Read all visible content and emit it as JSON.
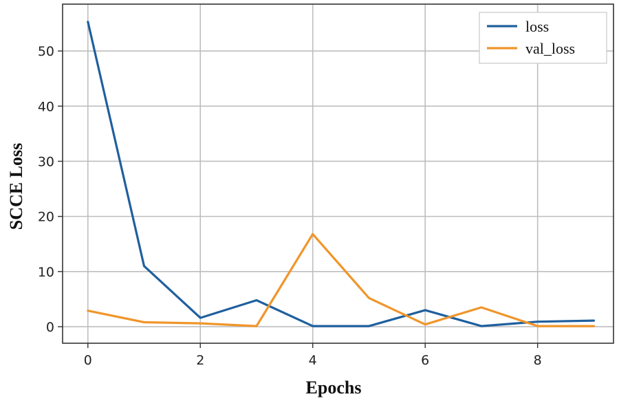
{
  "chart_data": {
    "type": "line",
    "title": "",
    "xlabel": "Epochs",
    "ylabel": "SCCE Loss",
    "x": [
      0,
      1,
      2,
      3,
      4,
      5,
      6,
      7,
      8,
      9
    ],
    "xlim": [
      -0.45,
      9.35
    ],
    "ylim": [
      -3,
      58.5
    ],
    "xticks": [
      0,
      2,
      4,
      6,
      8
    ],
    "yticks": [
      0,
      10,
      20,
      30,
      40,
      50
    ],
    "grid": true,
    "legend_position": "top-right",
    "series": [
      {
        "name": "loss",
        "color": "#1f5f9e",
        "values": [
          55.3,
          11.0,
          1.6,
          4.8,
          0.1,
          0.1,
          3.0,
          0.1,
          0.9,
          1.1
        ]
      },
      {
        "name": "val_loss",
        "color": "#f0952a",
        "values": [
          2.9,
          0.8,
          0.6,
          0.1,
          16.8,
          5.2,
          0.4,
          3.5,
          0.1,
          0.1
        ]
      }
    ]
  }
}
